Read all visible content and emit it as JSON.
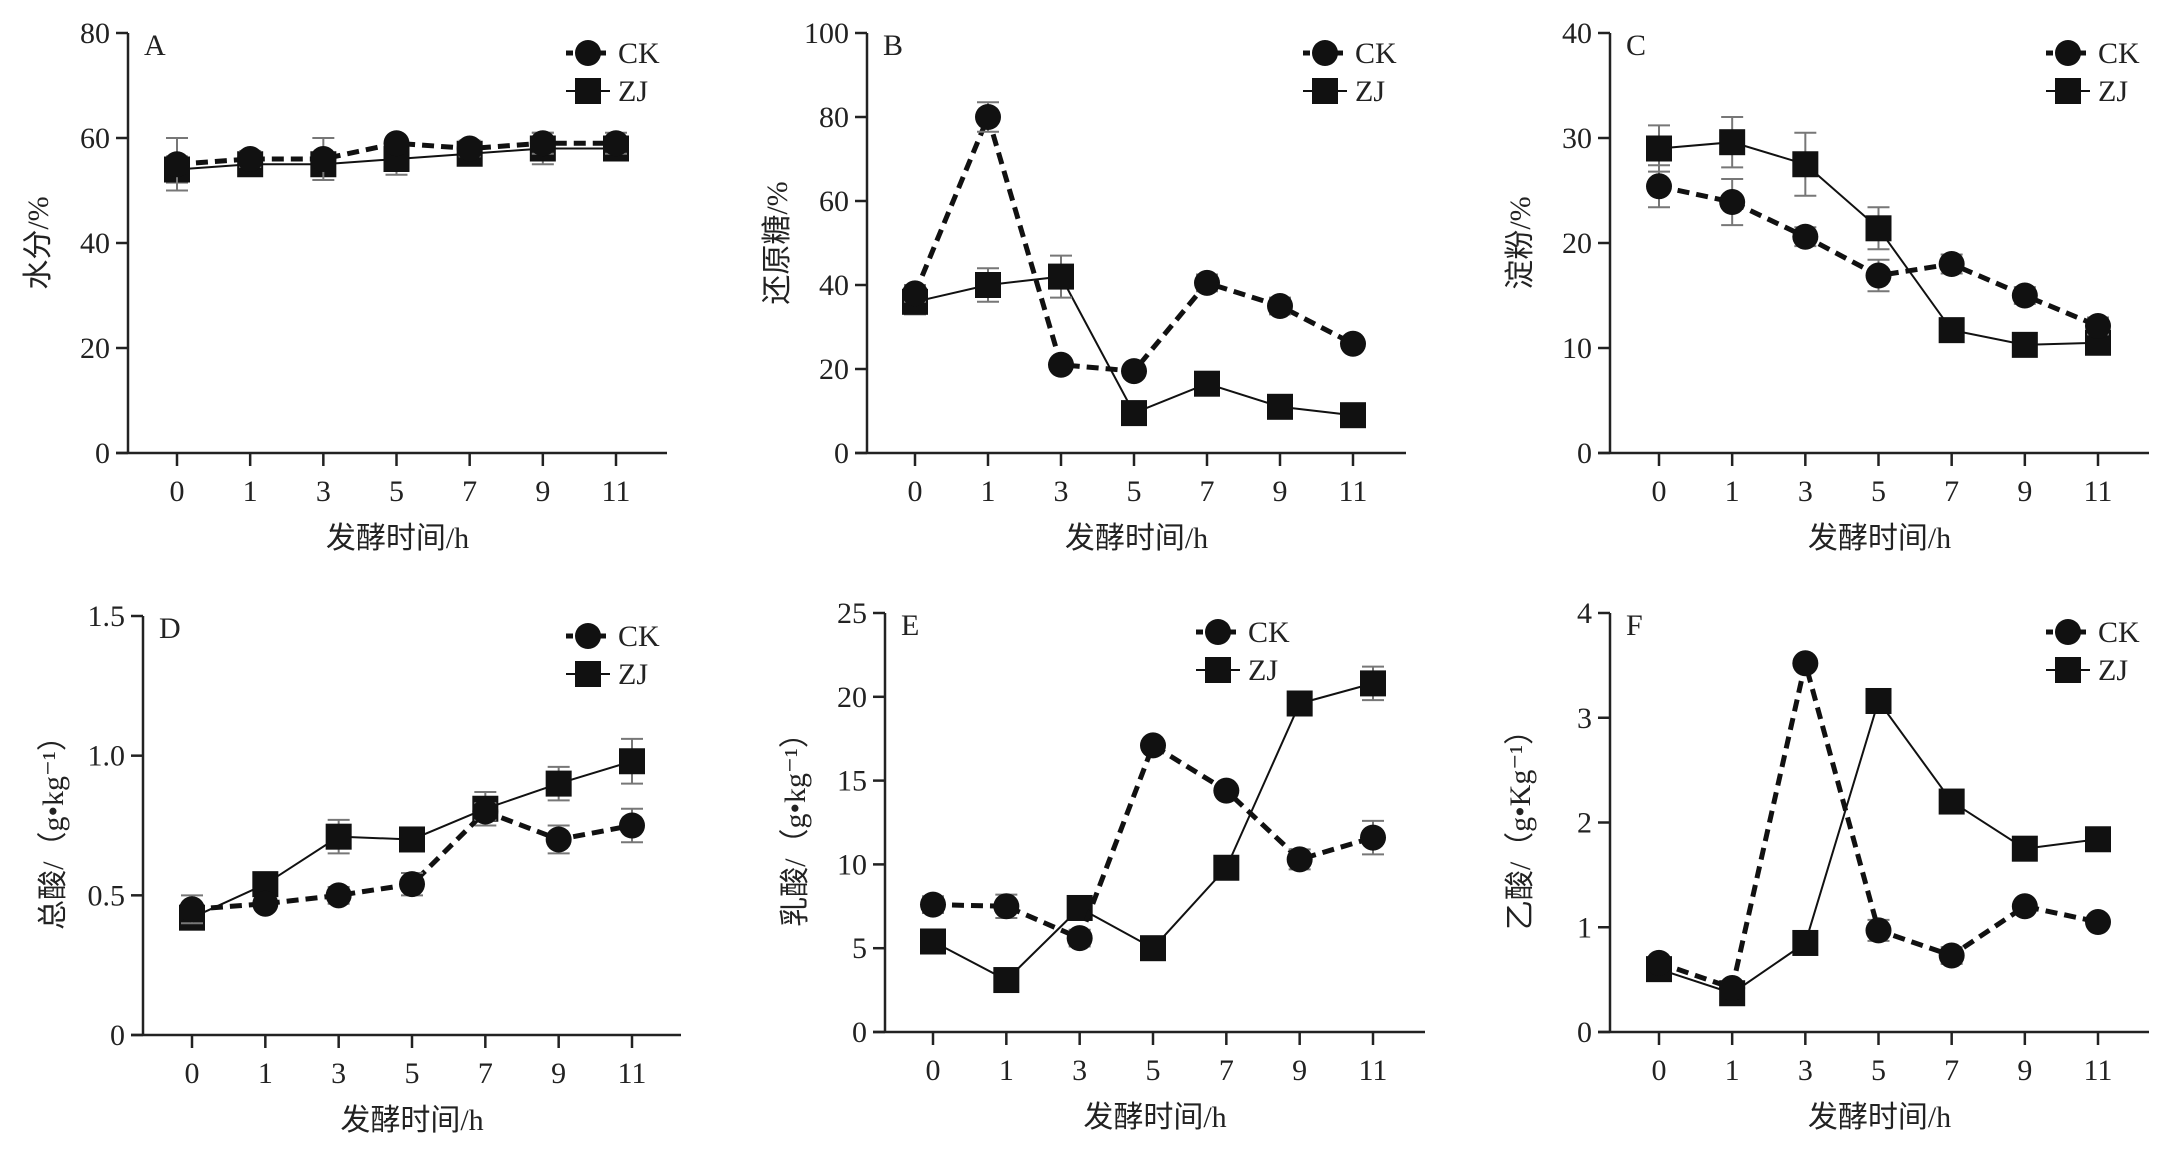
{
  "chart_data": [
    {
      "type": "line",
      "panel": "A",
      "ylabel": "水分/%",
      "xlabel": "发酵时间/h",
      "categories": [
        "0",
        "1",
        "3",
        "5",
        "7",
        "9",
        "11"
      ],
      "ylim": [
        0,
        80
      ],
      "yticks": [
        "0",
        "20",
        "40",
        "60",
        "80"
      ],
      "series": [
        {
          "name": "CK",
          "marker": "circle",
          "style": "dashed",
          "values": [
            55,
            56,
            56,
            59,
            58,
            59,
            59
          ],
          "errors": [
            5,
            1.5,
            4,
            1,
            1.5,
            2,
            2
          ]
        },
        {
          "name": "ZJ",
          "marker": "square",
          "style": "solid",
          "values": [
            54,
            55,
            55,
            56,
            57,
            58,
            58
          ],
          "errors": [
            2.5,
            1,
            2,
            3,
            1.5,
            3,
            1
          ]
        }
      ]
    },
    {
      "type": "line",
      "panel": "B",
      "ylabel": "还原糖/%",
      "xlabel": "发酵时间/h",
      "categories": [
        "0",
        "1",
        "3",
        "5",
        "7",
        "9",
        "11"
      ],
      "ylim": [
        0,
        100
      ],
      "yticks": [
        "0",
        "20",
        "40",
        "60",
        "80",
        "100"
      ],
      "series": [
        {
          "name": "CK",
          "marker": "circle",
          "style": "dashed",
          "values": [
            38,
            80,
            21,
            19.5,
            40.5,
            35,
            26
          ],
          "errors": [
            2,
            3.5,
            1,
            1,
            2,
            2,
            1
          ]
        },
        {
          "name": "ZJ",
          "marker": "square",
          "style": "solid",
          "values": [
            36,
            40,
            42,
            9.5,
            16.5,
            11,
            9
          ],
          "errors": [
            3,
            4,
            5,
            1,
            1,
            1,
            1
          ]
        }
      ]
    },
    {
      "type": "line",
      "panel": "C",
      "ylabel": "淀粉/%",
      "xlabel": "发酵时间/h",
      "categories": [
        "0",
        "1",
        "3",
        "5",
        "7",
        "9",
        "11"
      ],
      "ylim": [
        0,
        40
      ],
      "yticks": [
        "0",
        "10",
        "20",
        "30",
        "40"
      ],
      "series": [
        {
          "name": "CK",
          "marker": "circle",
          "style": "dashed",
          "values": [
            25.4,
            23.9,
            20.6,
            16.9,
            18,
            15,
            12.1
          ],
          "errors": [
            2,
            2.2,
            0.9,
            1.5,
            0.9,
            0.8,
            0.8
          ]
        },
        {
          "name": "ZJ",
          "marker": "square",
          "style": "solid",
          "values": [
            29,
            29.6,
            27.5,
            21.4,
            11.7,
            10.3,
            10.5
          ],
          "errors": [
            2.2,
            2.4,
            3,
            2,
            0.4,
            0.6,
            0.7
          ]
        }
      ]
    },
    {
      "type": "line",
      "panel": "D",
      "ylabel": "总酸/（g•kg⁻¹）",
      "xlabel": "发酵时间/h",
      "categories": [
        "0",
        "1",
        "3",
        "5",
        "7",
        "9",
        "11"
      ],
      "ylim": [
        0,
        1.5
      ],
      "yticks": [
        "0",
        "0.5",
        "1.0",
        "1.5"
      ],
      "series": [
        {
          "name": "CK",
          "marker": "circle",
          "style": "dashed",
          "values": [
            0.45,
            0.47,
            0.5,
            0.54,
            0.8,
            0.7,
            0.75
          ],
          "errors": [
            0.05,
            0.02,
            0.03,
            0.04,
            0.03,
            0.05,
            0.06
          ]
        },
        {
          "name": "ZJ",
          "marker": "square",
          "style": "solid",
          "values": [
            0.42,
            0.54,
            0.71,
            0.7,
            0.81,
            0.9,
            0.98
          ],
          "errors": [
            0.03,
            0.03,
            0.06,
            0.04,
            0.06,
            0.06,
            0.08
          ]
        }
      ]
    },
    {
      "type": "line",
      "panel": "E",
      "ylabel": "乳酸/（g•kg⁻¹）",
      "xlabel": "发酵时间/h",
      "categories": [
        "0",
        "1",
        "3",
        "5",
        "7",
        "9",
        "11"
      ],
      "ylim": [
        0,
        25
      ],
      "yticks": [
        "0",
        "5",
        "10",
        "15",
        "20",
        "25"
      ],
      "series": [
        {
          "name": "CK",
          "marker": "circle",
          "style": "dashed",
          "values": [
            7.6,
            7.5,
            5.6,
            17.1,
            14.4,
            10.3,
            11.6
          ],
          "errors": [
            0.5,
            0.7,
            0.5,
            0.3,
            0.3,
            0.6,
            1.0
          ]
        },
        {
          "name": "ZJ",
          "marker": "square",
          "style": "solid",
          "values": [
            5.4,
            3.1,
            7.4,
            5.0,
            9.8,
            19.6,
            20.8
          ],
          "errors": [
            0.3,
            0.3,
            0.3,
            0.3,
            0.3,
            0.3,
            1.0
          ]
        }
      ]
    },
    {
      "type": "line",
      "panel": "F",
      "ylabel": "乙酸/（g•Kg⁻¹）",
      "xlabel": "发酵时间/h",
      "categories": [
        "0",
        "1",
        "3",
        "5",
        "7",
        "9",
        "11"
      ],
      "ylim": [
        0,
        4
      ],
      "yticks": [
        "0",
        "1",
        "2",
        "3",
        "4"
      ],
      "series": [
        {
          "name": "CK",
          "marker": "circle",
          "style": "dashed",
          "values": [
            0.66,
            0.42,
            3.52,
            0.97,
            0.73,
            1.2,
            1.05
          ],
          "errors": [
            0.05,
            0.05,
            0.05,
            0.1,
            0.08,
            0.05,
            0.04
          ]
        },
        {
          "name": "ZJ",
          "marker": "square",
          "style": "solid",
          "values": [
            0.6,
            0.37,
            0.85,
            3.16,
            2.2,
            1.75,
            1.84
          ],
          "errors": [
            0.05,
            0.05,
            0.05,
            0.06,
            0.05,
            0.05,
            0.04
          ]
        }
      ]
    }
  ]
}
